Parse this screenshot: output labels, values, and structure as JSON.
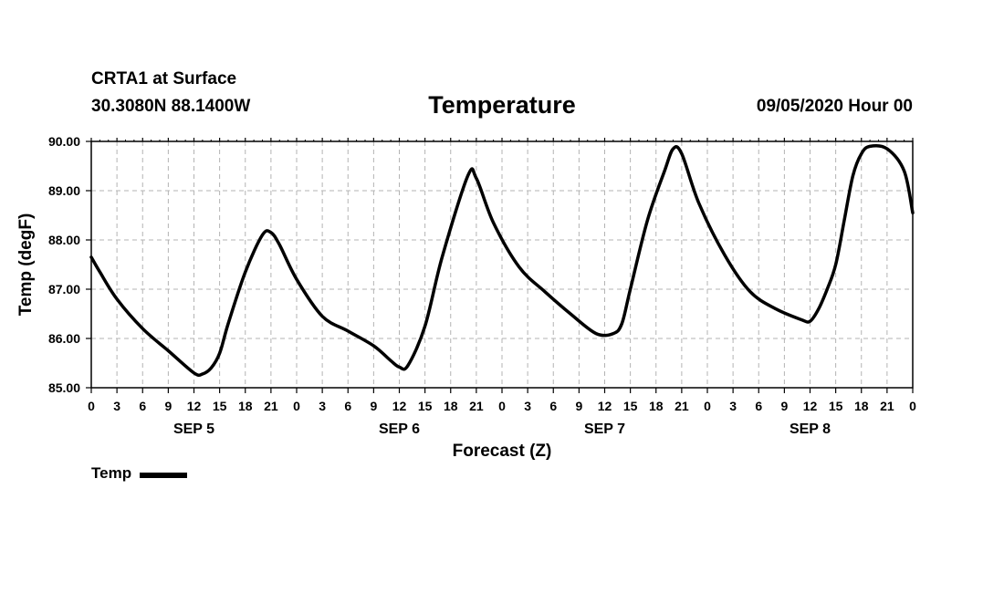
{
  "header": {
    "station": "CRTA1 at Surface",
    "coords": "30.3080N 88.1400W",
    "title": "Temperature",
    "datetime": "09/05/2020 Hour 00"
  },
  "chart_data": {
    "type": "line",
    "title": "Temperature",
    "xlabel": "Forecast (Z)",
    "ylabel": "Temp (degF)",
    "ylim": [
      85.0,
      90.0
    ],
    "xlim": [
      0,
      96
    ],
    "y_ticks": [
      "85.00",
      "86.00",
      "87.00",
      "88.00",
      "89.00",
      "90.00"
    ],
    "x_tick_labels": [
      "0",
      "3",
      "6",
      "9",
      "12",
      "15",
      "18",
      "21",
      "0",
      "3",
      "6",
      "9",
      "12",
      "15",
      "18",
      "21",
      "0",
      "3",
      "6",
      "9",
      "12",
      "15",
      "18",
      "21",
      "0",
      "3",
      "6",
      "9",
      "12",
      "15",
      "18",
      "21",
      "0"
    ],
    "day_labels": [
      {
        "label": "SEP 5",
        "hour": 12
      },
      {
        "label": "SEP 6",
        "hour": 36
      },
      {
        "label": "SEP 7",
        "hour": 60
      },
      {
        "label": "SEP 8",
        "hour": 84
      }
    ],
    "grid": true,
    "legend": "bottom-left",
    "series": [
      {
        "name": "Temp",
        "color": "#000000",
        "x": [
          0,
          1,
          3,
          6,
          9,
          12,
          13,
          14,
          15,
          16,
          18,
          20,
          21,
          22,
          24,
          27,
          30,
          33,
          35,
          36,
          37,
          39,
          41,
          44,
          45,
          47,
          50,
          53,
          56,
          59,
          61,
          62,
          63,
          65,
          67,
          68,
          69,
          71,
          74,
          77,
          80,
          83,
          84,
          85,
          86,
          87,
          88,
          89,
          90,
          91,
          93,
          95,
          96
        ],
        "y": [
          87.65,
          87.35,
          86.8,
          86.2,
          85.75,
          85.3,
          85.28,
          85.4,
          85.7,
          86.3,
          87.35,
          88.1,
          88.15,
          87.9,
          87.2,
          86.45,
          86.15,
          85.85,
          85.55,
          85.42,
          85.45,
          86.25,
          87.65,
          89.3,
          89.25,
          88.35,
          87.45,
          86.95,
          86.5,
          86.1,
          86.1,
          86.3,
          87.0,
          88.4,
          89.4,
          89.85,
          89.75,
          88.75,
          87.7,
          86.95,
          86.6,
          86.38,
          86.35,
          86.6,
          87.0,
          87.5,
          88.4,
          89.3,
          89.75,
          89.9,
          89.85,
          89.4,
          88.55
        ]
      }
    ]
  }
}
